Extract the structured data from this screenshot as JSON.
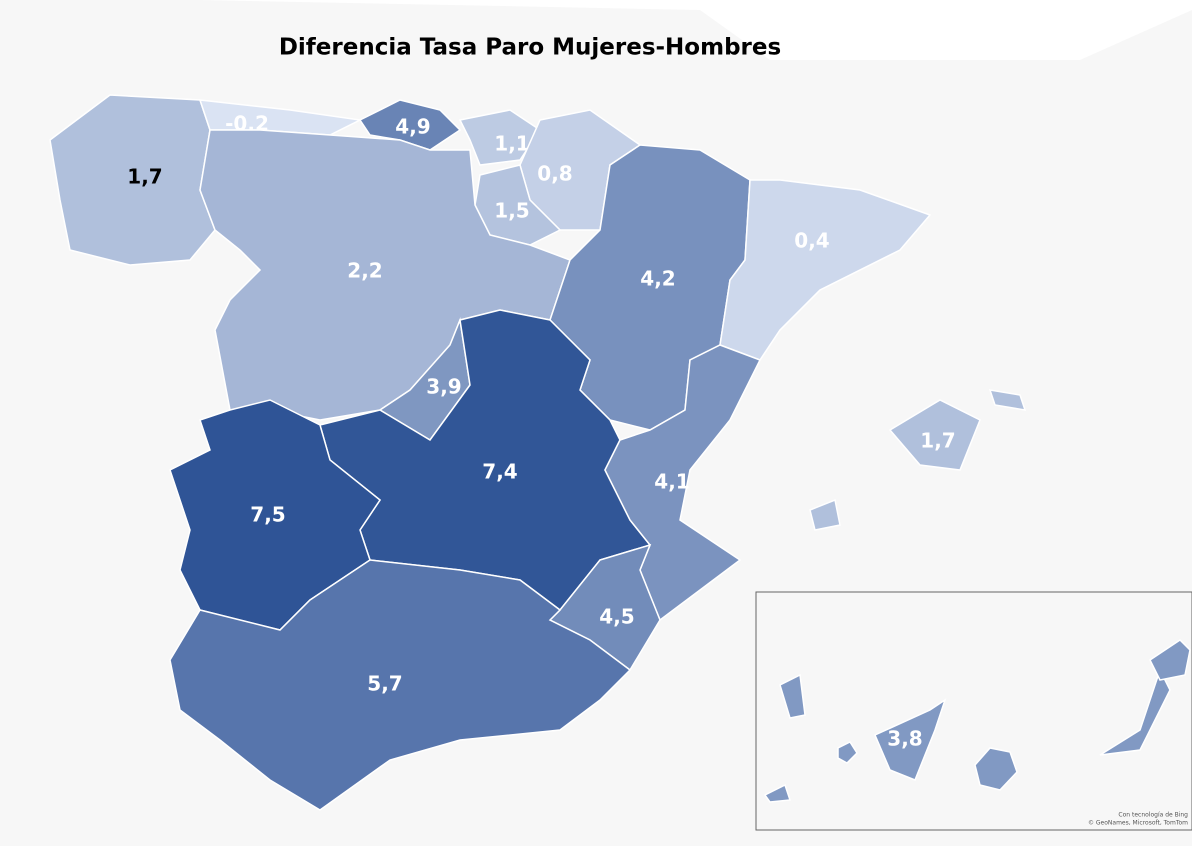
{
  "title": "Diferencia Tasa Paro Mujeres-Hombres",
  "map": {
    "regions": [
      {
        "value": 1.7,
        "label": "1,7",
        "label_color": "#000000"
      },
      {
        "value": -0.2,
        "label": "-0,2",
        "label_color": "#ffffff"
      },
      {
        "value": 4.9,
        "label": "4,9",
        "label_color": "#ffffff"
      },
      {
        "value": 1.1,
        "label": "1,1",
        "label_color": "#ffffff"
      },
      {
        "value": 0.8,
        "label": "0,8",
        "label_color": "#ffffff"
      },
      {
        "value": 1.5,
        "label": "1,5",
        "label_color": "#ffffff"
      },
      {
        "value": 2.2,
        "label": "2,2",
        "label_color": "#ffffff"
      },
      {
        "value": 4.2,
        "label": "4,2",
        "label_color": "#ffffff"
      },
      {
        "value": 0.4,
        "label": "0,4",
        "label_color": "#ffffff"
      },
      {
        "value": 3.9,
        "label": "3,9",
        "label_color": "#ffffff"
      },
      {
        "value": 7.4,
        "label": "7,4",
        "label_color": "#ffffff"
      },
      {
        "value": 7.5,
        "label": "7,5",
        "label_color": "#ffffff"
      },
      {
        "value": 4.1,
        "label": "4,1",
        "label_color": "#ffffff"
      },
      {
        "value": 4.5,
        "label": "4,5",
        "label_color": "#ffffff"
      },
      {
        "value": 5.7,
        "label": "5,7",
        "label_color": "#ffffff"
      },
      {
        "value": 1.7,
        "label": "1,7",
        "label_color": "#ffffff"
      },
      {
        "value": 3.8,
        "label": "3,8",
        "label_color": "#ffffff"
      }
    ]
  },
  "attribution": [
    "Con tecnología de Bing",
    "© GeoNames, Microsoft, TomTom"
  ]
}
